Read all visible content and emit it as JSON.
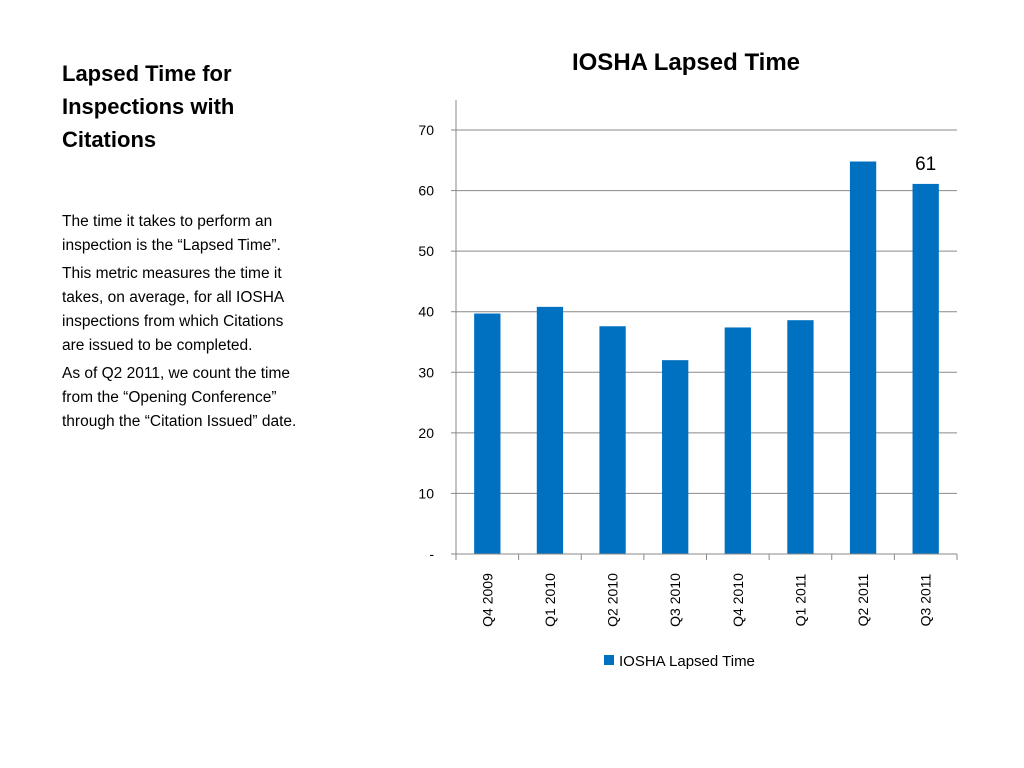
{
  "slide": {
    "title": "Lapsed Time for Inspections with Citations",
    "paragraphs": [
      "The time it takes to perform an inspection is the “Lapsed Time”.",
      "This metric measures the time it takes, on average, for all IOSHA inspections from which Citations are issued to be completed.",
      "As of Q2 2011, we count the time from the “Opening Conference” through the “Citation Issued” date."
    ]
  },
  "chart_data": {
    "type": "bar",
    "title": "IOSHA Lapsed Time",
    "categories": [
      "Q4 2009",
      "Q1 2010",
      "Q2 2010",
      "Q3 2010",
      "Q4 2010",
      "Q1 2011",
      "Q2 2011",
      "Q3 2011"
    ],
    "series": [
      {
        "name": "IOSHA Lapsed Time",
        "values": [
          39.7,
          40.8,
          37.6,
          32.0,
          37.4,
          38.6,
          64.8,
          61.1
        ],
        "color": "#0070C0"
      }
    ],
    "data_labels": [
      {
        "category": "Q3 2011",
        "text": "61"
      }
    ],
    "ylim": [
      0,
      70
    ],
    "yticks": [
      0,
      10,
      20,
      30,
      40,
      50,
      60,
      70
    ],
    "ytick_labels": [
      "-",
      "10",
      "20",
      "30",
      "40",
      "50",
      "60",
      "70"
    ],
    "grid": true,
    "legend": "bottom",
    "xlabel": "",
    "ylabel": ""
  }
}
